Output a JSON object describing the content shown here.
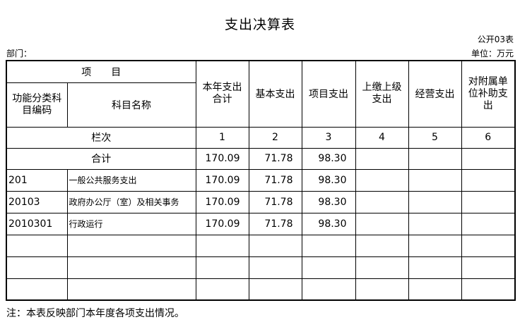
{
  "title": "支出决算表",
  "form_no": "公开03表",
  "department_label": "部门：",
  "unit_label": "单位：万元",
  "header": {
    "item": "项　　目",
    "code": "功能分类科目编码",
    "name": "科目名称",
    "columns": [
      "本年支出合计",
      "基本支出",
      "项目支出",
      "上缴上级支出",
      "经营支出",
      "对附属单位补助支出"
    ]
  },
  "column_index_row": {
    "label": "栏次",
    "values": [
      "1",
      "2",
      "3",
      "4",
      "5",
      "6"
    ]
  },
  "total_row": {
    "label": "合计",
    "values": [
      "170.09",
      "71.78",
      "98.30",
      "",
      "",
      ""
    ]
  },
  "rows": [
    {
      "code": "201",
      "name": "一般公共服务支出",
      "values": [
        "170.09",
        "71.78",
        "98.30",
        "",
        "",
        ""
      ]
    },
    {
      "code": "20103",
      "name": "政府办公厅（室）及相关事务",
      "values": [
        "170.09",
        "71.78",
        "98.30",
        "",
        "",
        ""
      ]
    },
    {
      "code": "2010301",
      "name": "行政运行",
      "values": [
        "170.09",
        "71.78",
        "98.30",
        "",
        "",
        ""
      ]
    },
    {
      "code": "",
      "name": "",
      "values": [
        "",
        "",
        "",
        "",
        "",
        ""
      ]
    },
    {
      "code": "",
      "name": "",
      "values": [
        "",
        "",
        "",
        "",
        "",
        ""
      ]
    },
    {
      "code": "",
      "name": "",
      "values": [
        "",
        "",
        "",
        "",
        "",
        ""
      ]
    }
  ],
  "note": "注：本表反映部门本年度各项支出情况。"
}
